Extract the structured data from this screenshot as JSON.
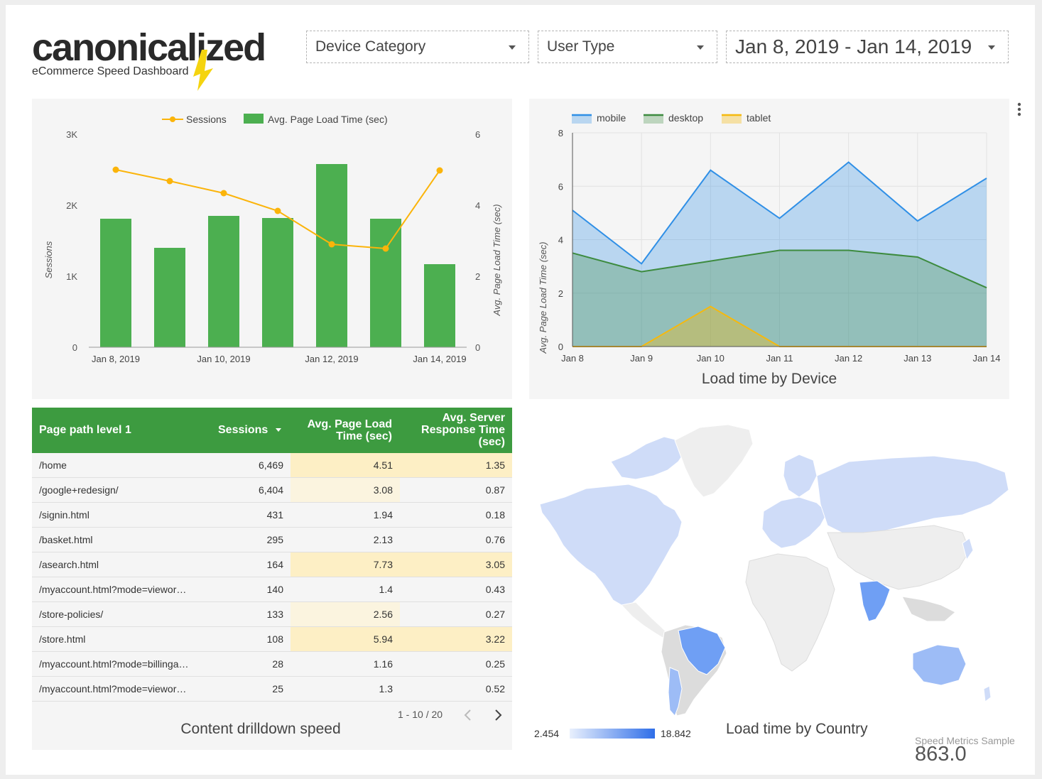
{
  "header": {
    "logo_text": "canonicalized",
    "logo_subtitle": "eCommerce Speed Dashboard",
    "filters": [
      {
        "label": "Device Category"
      },
      {
        "label": "User Type"
      },
      {
        "label": "Jan 8, 2019 - Jan 14, 2019"
      }
    ]
  },
  "colors": {
    "bar_green": "#4caf50",
    "sessions_line": "#fbb40a",
    "mobile": "#2f8fe6",
    "desktop": "#3d8b3f",
    "tablet": "#f5b90f",
    "table_header": "#3d9b40",
    "highlight": "#fdefc5"
  },
  "menu_icon": "more-vert-icon",
  "chart_data": [
    {
      "type": "bar",
      "legend": [
        "Sessions",
        "Avg. Page Load Time (sec)"
      ],
      "legend_position": "top",
      "categories": [
        "Jan 8, 2019",
        "Jan 9, 2019",
        "Jan 10, 2019",
        "Jan 11, 2019",
        "Jan 12, 2019",
        "Jan 13, 2019",
        "Jan 14, 2019"
      ],
      "x_tick_labels": [
        "Jan 8, 2019",
        "Jan 10, 2019",
        "Jan 12, 2019",
        "Jan 14, 2019"
      ],
      "series": [
        {
          "name": "Avg. Page Load Time (sec)",
          "kind": "bar",
          "axis": "right",
          "values": [
            3.62,
            2.8,
            3.7,
            3.64,
            5.16,
            3.62,
            2.34
          ]
        },
        {
          "name": "Sessions",
          "kind": "line",
          "axis": "left",
          "values": [
            2500,
            2340,
            2170,
            1920,
            1450,
            1390,
            2490
          ]
        }
      ],
      "ylabel": "Sessions",
      "y2label": "Avg. Page Load Time (sec)",
      "ylim": [
        0,
        3000
      ],
      "y2lim": [
        0,
        6
      ],
      "y_ticks": [
        "0",
        "1K",
        "2K",
        "3K"
      ],
      "y2_ticks": [
        "0",
        "2",
        "4",
        "6"
      ]
    },
    {
      "type": "area",
      "title": "Load time by Device",
      "legend_position": "top-left",
      "x": [
        "Jan 8",
        "Jan 9",
        "Jan 10",
        "Jan 11",
        "Jan 12",
        "Jan 13",
        "Jan 14"
      ],
      "series": [
        {
          "name": "mobile",
          "values": [
            5.1,
            3.1,
            6.6,
            4.8,
            6.9,
            4.7,
            6.3
          ]
        },
        {
          "name": "desktop",
          "values": [
            3.5,
            2.8,
            3.2,
            3.6,
            3.6,
            3.35,
            2.2
          ]
        },
        {
          "name": "tablet",
          "values": [
            0,
            0,
            1.5,
            0,
            0,
            0,
            0
          ]
        }
      ],
      "ylabel": "Avg. Page Load Time (sec)",
      "ylim": [
        0,
        8
      ],
      "y_ticks": [
        "0",
        "2",
        "4",
        "6",
        "8"
      ],
      "grid": true
    },
    {
      "type": "table",
      "title": "Content drilldown speed",
      "columns": [
        "Page path level 1",
        "Sessions",
        "Avg. Page Load Time (sec)",
        "Avg. Server Response Time (sec)"
      ],
      "rows": [
        [
          "/home",
          "6,469",
          "4.51",
          "1.35"
        ],
        [
          "/google+redesign/",
          "6,404",
          "3.08",
          "0.87"
        ],
        [
          "/signin.html",
          "431",
          "1.94",
          "0.18"
        ],
        [
          "/basket.html",
          "295",
          "2.13",
          "0.76"
        ],
        [
          "/asearch.html",
          "164",
          "7.73",
          "3.05"
        ],
        [
          "/myaccount.html?mode=viewor…",
          "140",
          "1.4",
          "0.43"
        ],
        [
          "/store-policies/",
          "133",
          "2.56",
          "0.27"
        ],
        [
          "/store.html",
          "108",
          "5.94",
          "3.22"
        ],
        [
          "/myaccount.html?mode=billinga…",
          "28",
          "1.16",
          "0.25"
        ],
        [
          "/myaccount.html?mode=viewor…",
          "25",
          "1.3",
          "0.52"
        ]
      ],
      "pagination": "1 - 10 / 20"
    }
  ],
  "table": {
    "header": {
      "path": "Page path level 1",
      "sessions": "Sessions",
      "plt_line1": "Avg. Page Load",
      "plt_line2": "Time (sec)",
      "srt_line1": "Avg. Server",
      "srt_line2": "Response Time",
      "srt_line3": "(sec)"
    },
    "title": "Content drilldown speed",
    "pagination": "1 - 10 / 20"
  },
  "map": {
    "title": "Load time by Country",
    "scale_min": "2.454",
    "scale_max": "18.842"
  },
  "scorecard": {
    "label": "Speed Metrics Sample",
    "value": "863.0"
  }
}
